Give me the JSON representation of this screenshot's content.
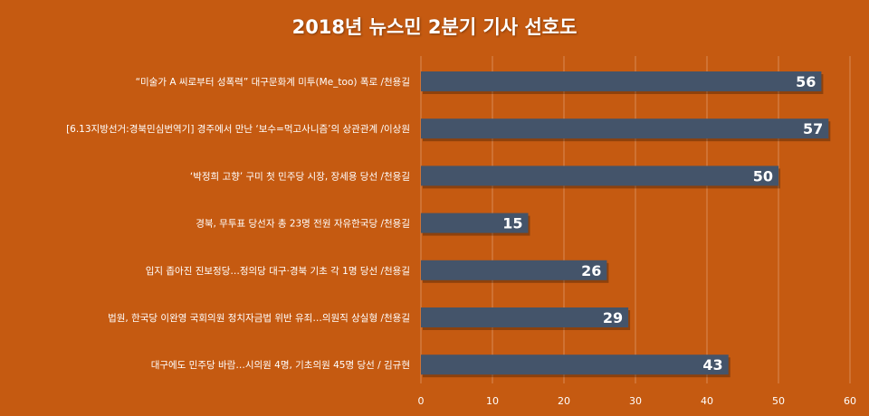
{
  "colors": {
    "background": "#c55a11",
    "bar": "#44546a",
    "text": "#ffffff",
    "grid": "#d98b55"
  },
  "chart_data": {
    "type": "bar",
    "orientation": "horizontal",
    "title": "2018년 뉴스민 2분기 기사 선호도",
    "categories": [
      "“미술가 A 씨로부터 성폭력” 대구문화계 미투(Me_too) 폭로 /천용길",
      "[6.13지방선거:경북민심번역기] 경주에서 만난 ‘보수=먹고사니즘’의 상관관계 /이상원",
      "‘박정희 고향’ 구미 첫 민주당 시장, 장세용 당선 /천용길",
      "경북, 무투표 당선자 총 23명 전원 자유한국당 /천용길",
      "입지 좁아진 진보정당…정의당 대구·경북 기초 각 1명 당선 /천용길",
      "법원, 한국당 이완영 국회의원 정치자금법 위반 유죄…의원직 상실형 /천용길",
      "대구에도 민주당 바람…시의원 4명, 기초의원 45명 당선 / 김규현"
    ],
    "values": [
      56,
      57,
      50,
      15,
      26,
      29,
      43
    ],
    "xlim": [
      0,
      60
    ],
    "xticks": [
      0,
      10,
      20,
      30,
      40,
      50,
      60
    ],
    "grid": true,
    "legend": "none"
  }
}
